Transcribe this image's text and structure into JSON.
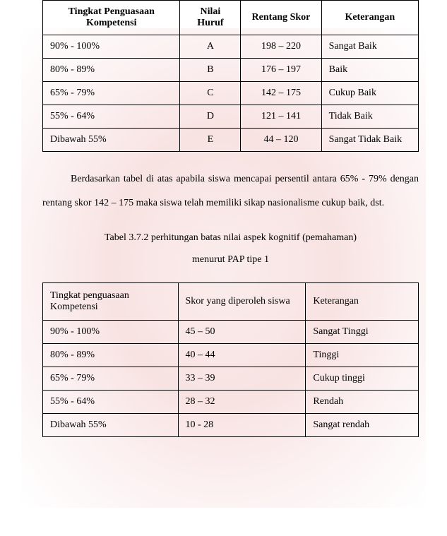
{
  "table1": {
    "columns": [
      "Tingkat Penguasaan Kompetensi",
      "Nilai Huruf",
      "Rentang Skor",
      "Keterangan"
    ],
    "rows": [
      [
        "90% - 100%",
        "A",
        "198 – 220",
        "Sangat Baik"
      ],
      [
        "80% - 89%",
        "B",
        "176 – 197",
        "Baik"
      ],
      [
        "65% - 79%",
        "C",
        "142 – 175",
        "Cukup Baik"
      ],
      [
        "55% - 64%",
        "D",
        "121 – 141",
        "Tidak Baik"
      ],
      [
        "Dibawah 55%",
        "E",
        "44 – 120",
        "Sangat Tidak Baik"
      ]
    ]
  },
  "paragraph": "Berdasarkan tabel di atas apabila siswa mencapai persentil antara 65% - 79% dengan rentang skor 142 – 175 maka siswa telah memiliki sikap nasionalisme cukup baik, dst.",
  "caption": {
    "line1": "Tabel 3.7.2 perhitungan batas nilai aspek kognitif (pemahaman)",
    "line2": "menurut PAP tipe 1"
  },
  "table2": {
    "columns": [
      "Tingkat penguasaan Kompetensi",
      "Skor yang diperoleh siswa",
      "Keterangan"
    ],
    "rows": [
      [
        "90% - 100%",
        "45 – 50",
        "Sangat Tinggi"
      ],
      [
        "80% - 89%",
        "40 – 44",
        "Tinggi"
      ],
      [
        "65% - 79%",
        "33 – 39",
        "Cukup tinggi"
      ],
      [
        "55% - 64%",
        "28 – 32",
        "Rendah"
      ],
      [
        "Dibawah 55%",
        "10 - 28",
        "Sangat rendah"
      ]
    ]
  }
}
